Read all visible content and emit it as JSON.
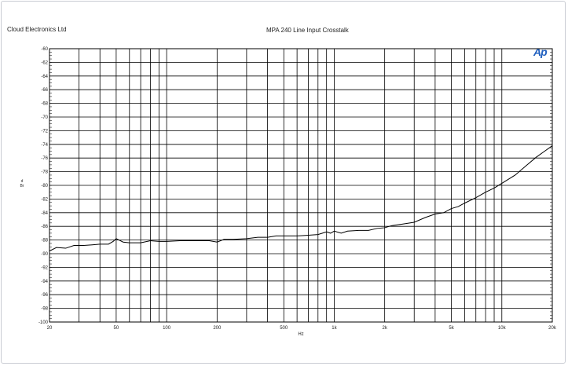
{
  "header": {
    "company": "Cloud Electronics Ltd",
    "title": "MPA 240 Line Input Crosstalk",
    "logo": "Ap"
  },
  "chart_data": {
    "type": "line",
    "title": "MPA 240 Line Input Crosstalk",
    "xlabel": "Hz",
    "ylabel": "dBr",
    "xscale": "log",
    "xlim": [
      20,
      20000
    ],
    "ylim": [
      -100,
      -60
    ],
    "grid": true,
    "xticks": [
      20,
      50,
      100,
      200,
      500,
      1000,
      2000,
      5000,
      10000,
      20000
    ],
    "xtick_labels": [
      "20",
      "50",
      "100",
      "200",
      "500",
      "1k",
      "2k",
      "5k",
      "10k",
      "20k"
    ],
    "yticks": [
      -60,
      -62,
      -64,
      -66,
      -68,
      -70,
      -72,
      -74,
      -76,
      -78,
      -80,
      -82,
      -84,
      -86,
      -88,
      -90,
      -92,
      -94,
      -96,
      -98,
      -100
    ],
    "ytick_labels": [
      "-60",
      "-62",
      "-64",
      "-66",
      "-68",
      "-70",
      "-72",
      "-74",
      "-76",
      "-78",
      "-80",
      "-82",
      "-84",
      "-86",
      "-88",
      "-90",
      "-92",
      "-94",
      "-96",
      "-98",
      "-100"
    ],
    "series": [
      {
        "x": [
          20,
          22,
          25,
          28,
          32,
          36,
          40,
          45,
          48,
          50,
          55,
          60,
          70,
          80,
          90,
          100,
          120,
          150,
          180,
          200,
          220,
          250,
          300,
          350,
          400,
          450,
          500,
          600,
          700,
          800,
          850,
          900,
          950,
          1000,
          1100,
          1200,
          1400,
          1600,
          1800,
          2000,
          2200,
          2500,
          3000,
          3500,
          4000,
          4500,
          5000,
          5500,
          6000,
          7000,
          8000,
          9000,
          10000,
          12000,
          14000,
          16000,
          18000,
          20000
        ],
        "y": [
          -89.6,
          -89.1,
          -89.2,
          -88.8,
          -88.8,
          -88.7,
          -88.6,
          -88.6,
          -88.2,
          -87.8,
          -88.3,
          -88.4,
          -88.4,
          -88.1,
          -88.2,
          -88.2,
          -88.1,
          -88.1,
          -88.1,
          -88.3,
          -87.9,
          -87.9,
          -87.8,
          -87.6,
          -87.6,
          -87.4,
          -87.4,
          -87.4,
          -87.3,
          -87.2,
          -87.0,
          -86.8,
          -87.0,
          -86.7,
          -87.0,
          -86.7,
          -86.6,
          -86.6,
          -86.3,
          -86.2,
          -85.9,
          -85.7,
          -85.4,
          -84.7,
          -84.2,
          -84.0,
          -83.4,
          -83.1,
          -82.6,
          -81.8,
          -81.0,
          -80.4,
          -79.7,
          -78.5,
          -77.1,
          -75.9,
          -75.0,
          -74.2
        ]
      }
    ]
  }
}
